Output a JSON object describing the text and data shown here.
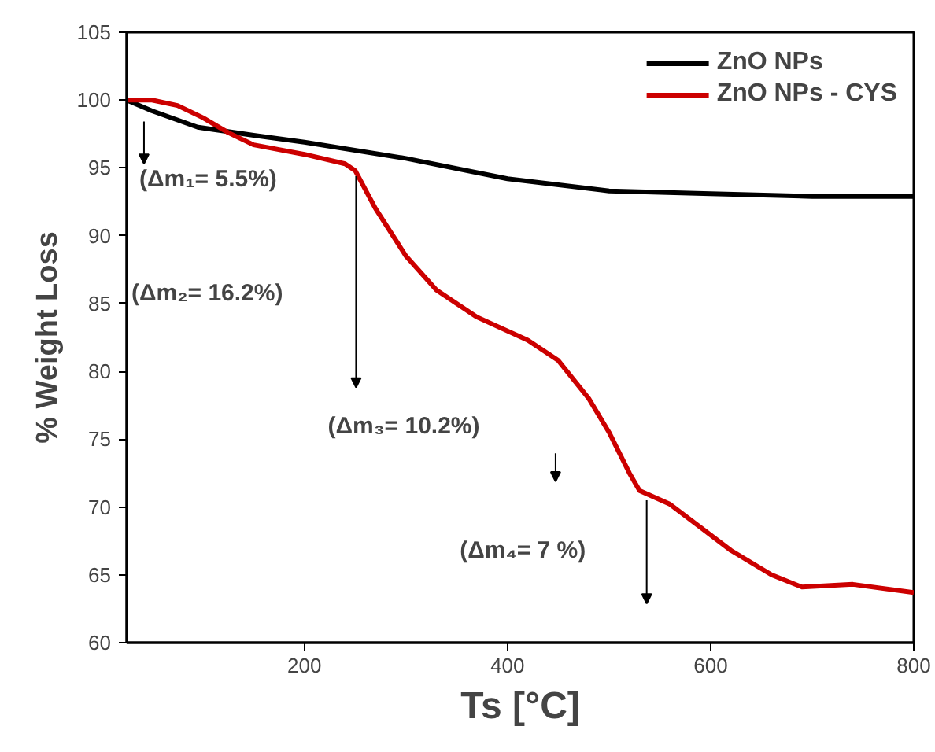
{
  "chart_data": {
    "type": "line",
    "xlabel": "Ts [°C]",
    "ylabel": "% Weight Loss",
    "x": [
      25,
      50,
      75,
      100,
      125,
      150,
      200,
      240,
      250,
      270,
      300,
      330,
      370,
      420,
      450,
      480,
      500,
      520,
      530,
      560,
      590,
      620,
      660,
      690,
      740,
      800
    ],
    "series": [
      {
        "name": "ZnO NPs",
        "color": "#000000",
        "x": [
          25,
          50,
          95,
          150,
          200,
          300,
          400,
          500,
          600,
          700,
          800
        ],
        "values": [
          100,
          99.2,
          98,
          97.4,
          96.9,
          95.7,
          94.2,
          93.3,
          93.1,
          92.9,
          92.9
        ]
      },
      {
        "name": "ZnO NPs - CYS",
        "color": "#cc0000",
        "values": [
          100,
          100,
          99.6,
          98.7,
          97.6,
          96.7,
          96,
          95.3,
          94.8,
          92,
          88.5,
          86,
          84,
          82.3,
          80.8,
          78,
          75.5,
          72.5,
          71.2,
          70.2,
          68.5,
          66.8,
          65,
          64.1,
          64.3,
          63.7
        ]
      }
    ],
    "xlim": [
      25,
      800
    ],
    "ylim": [
      60,
      105
    ],
    "xticks": [
      200,
      400,
      600,
      800
    ],
    "yticks": [
      60,
      65,
      70,
      75,
      80,
      85,
      90,
      95,
      100,
      105
    ],
    "annotations": [
      "(Δm₁= 5.5%)",
      "(Δm₂= 16.2%)",
      "(Δm₃= 10.2%)",
      "(Δm₄= 7 %)"
    ],
    "grid": false,
    "legend": "top right",
    "line_style": "solid",
    "marker": "none"
  }
}
